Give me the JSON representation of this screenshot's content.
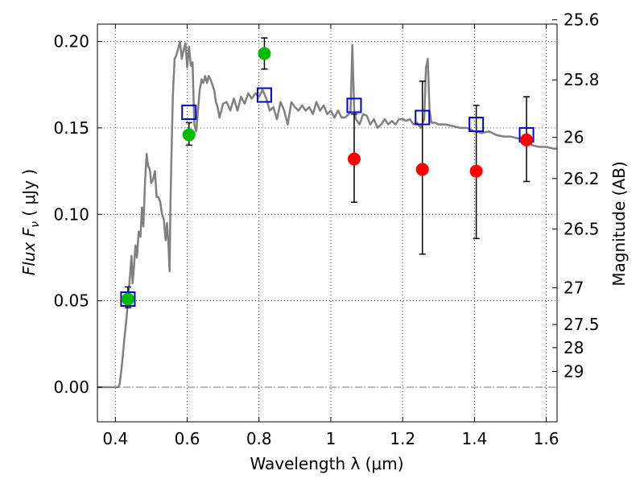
{
  "chart_data": {
    "type": "scatter",
    "title": "",
    "xlabel": "Wavelength  λ (μm)",
    "ylabel": "Flux  F",
    "ylabel_sub": "ν",
    "ylabel_unit": "  ( μJy )",
    "y2label": "Magnitude (AB)",
    "xlim": [
      0.35,
      1.63
    ],
    "ylim": [
      -0.02,
      0.21
    ],
    "grid": true,
    "x_ticks": [
      {
        "value": 0.4,
        "label": "0.4"
      },
      {
        "value": 0.6,
        "label": "0.6"
      },
      {
        "value": 0.8,
        "label": "0.8"
      },
      {
        "value": 1.0,
        "label": "1"
      },
      {
        "value": 1.2,
        "label": "1.2"
      },
      {
        "value": 1.4,
        "label": "1.4"
      },
      {
        "value": 1.6,
        "label": "1.6"
      }
    ],
    "y_ticks": [
      {
        "value": 0.0,
        "label": "0.00"
      },
      {
        "value": 0.05,
        "label": "0.05"
      },
      {
        "value": 0.1,
        "label": "0.10"
      },
      {
        "value": 0.15,
        "label": "0.15"
      },
      {
        "value": 0.2,
        "label": "0.20"
      }
    ],
    "y2_ticks": [
      {
        "flux": 0.2125,
        "label": "25.6"
      },
      {
        "flux": 0.1778,
        "label": "25.8"
      },
      {
        "flux": 0.1445,
        "label": "26"
      },
      {
        "flux": 0.1207,
        "label": "26.2"
      },
      {
        "flux": 0.0915,
        "label": "26.5"
      },
      {
        "flux": 0.0575,
        "label": "27"
      },
      {
        "flux": 0.0363,
        "label": "27.5"
      },
      {
        "flux": 0.0229,
        "label": "28"
      },
      {
        "flux": 0.0091,
        "label": "29"
      }
    ],
    "reference_line": {
      "y": 0.0,
      "style": "dash-dot",
      "color": "#7a7a7a"
    },
    "series": [
      {
        "kind": "line",
        "color": "#808080",
        "points": [
          [
            0.35,
            0.0
          ],
          [
            0.408,
            0.0
          ],
          [
            0.412,
            0.002
          ],
          [
            0.418,
            0.012
          ],
          [
            0.425,
            0.028
          ],
          [
            0.432,
            0.042
          ],
          [
            0.437,
            0.055
          ],
          [
            0.441,
            0.065
          ],
          [
            0.445,
            0.076
          ],
          [
            0.448,
            0.06
          ],
          [
            0.452,
            0.07
          ],
          [
            0.456,
            0.082
          ],
          [
            0.46,
            0.075
          ],
          [
            0.465,
            0.09
          ],
          [
            0.47,
            0.087
          ],
          [
            0.474,
            0.104
          ],
          [
            0.478,
            0.093
          ],
          [
            0.483,
            0.12
          ],
          [
            0.487,
            0.135
          ],
          [
            0.491,
            0.128
          ],
          [
            0.496,
            0.126
          ],
          [
            0.5,
            0.118
          ],
          [
            0.505,
            0.12
          ],
          [
            0.51,
            0.125
          ],
          [
            0.515,
            0.11
          ],
          [
            0.52,
            0.11
          ],
          [
            0.525,
            0.107
          ],
          [
            0.53,
            0.1
          ],
          [
            0.535,
            0.097
          ],
          [
            0.54,
            0.085
          ],
          [
            0.544,
            0.095
          ],
          [
            0.548,
            0.082
          ],
          [
            0.551,
            0.067
          ],
          [
            0.553,
            0.102
          ],
          [
            0.556,
            0.132
          ],
          [
            0.56,
            0.168
          ],
          [
            0.565,
            0.19
          ],
          [
            0.57,
            0.192
          ],
          [
            0.575,
            0.196
          ],
          [
            0.58,
            0.2
          ],
          [
            0.585,
            0.19
          ],
          [
            0.59,
            0.195
          ],
          [
            0.595,
            0.199
          ],
          [
            0.6,
            0.185
          ],
          [
            0.605,
            0.197
          ],
          [
            0.61,
            0.186
          ],
          [
            0.615,
            0.188
          ],
          [
            0.62,
            0.152
          ],
          [
            0.625,
            0.148
          ],
          [
            0.63,
            0.16
          ],
          [
            0.635,
            0.172
          ],
          [
            0.64,
            0.178
          ],
          [
            0.645,
            0.176
          ],
          [
            0.65,
            0.18
          ],
          [
            0.655,
            0.176
          ],
          [
            0.66,
            0.18
          ],
          [
            0.665,
            0.178
          ],
          [
            0.67,
            0.175
          ],
          [
            0.675,
            0.172
          ],
          [
            0.68,
            0.165
          ],
          [
            0.685,
            0.162
          ],
          [
            0.69,
            0.156
          ],
          [
            0.695,
            0.16
          ],
          [
            0.7,
            0.164
          ],
          [
            0.71,
            0.165
          ],
          [
            0.72,
            0.16
          ],
          [
            0.73,
            0.167
          ],
          [
            0.74,
            0.16
          ],
          [
            0.75,
            0.168
          ],
          [
            0.76,
            0.164
          ],
          [
            0.77,
            0.17
          ],
          [
            0.78,
            0.167
          ],
          [
            0.79,
            0.17
          ],
          [
            0.8,
            0.168
          ],
          [
            0.81,
            0.172
          ],
          [
            0.82,
            0.167
          ],
          [
            0.83,
            0.16
          ],
          [
            0.84,
            0.162
          ],
          [
            0.85,
            0.155
          ],
          [
            0.86,
            0.165
          ],
          [
            0.87,
            0.16
          ],
          [
            0.88,
            0.152
          ],
          [
            0.89,
            0.165
          ],
          [
            0.9,
            0.162
          ],
          [
            0.91,
            0.16
          ],
          [
            0.92,
            0.163
          ],
          [
            0.93,
            0.16
          ],
          [
            0.94,
            0.162
          ],
          [
            0.95,
            0.158
          ],
          [
            0.96,
            0.165
          ],
          [
            0.97,
            0.16
          ],
          [
            0.98,
            0.163
          ],
          [
            0.99,
            0.158
          ],
          [
            1.0,
            0.16
          ],
          [
            1.01,
            0.156
          ],
          [
            1.02,
            0.16
          ],
          [
            1.03,
            0.156
          ],
          [
            1.04,
            0.156
          ],
          [
            1.05,
            0.158
          ],
          [
            1.055,
            0.16
          ],
          [
            1.06,
            0.198
          ],
          [
            1.065,
            0.16
          ],
          [
            1.07,
            0.155
          ],
          [
            1.08,
            0.152
          ],
          [
            1.09,
            0.158
          ],
          [
            1.1,
            0.157
          ],
          [
            1.11,
            0.152
          ],
          [
            1.12,
            0.155
          ],
          [
            1.13,
            0.15
          ],
          [
            1.14,
            0.152
          ],
          [
            1.15,
            0.155
          ],
          [
            1.16,
            0.152
          ],
          [
            1.17,
            0.154
          ],
          [
            1.18,
            0.152
          ],
          [
            1.19,
            0.155
          ],
          [
            1.2,
            0.155
          ],
          [
            1.21,
            0.154
          ],
          [
            1.22,
            0.155
          ],
          [
            1.23,
            0.152
          ],
          [
            1.24,
            0.153
          ],
          [
            1.25,
            0.15
          ],
          [
            1.26,
            0.155
          ],
          [
            1.265,
            0.185
          ],
          [
            1.27,
            0.19
          ],
          [
            1.275,
            0.16
          ],
          [
            1.28,
            0.153
          ],
          [
            1.29,
            0.153
          ],
          [
            1.3,
            0.152
          ],
          [
            1.32,
            0.152
          ],
          [
            1.34,
            0.151
          ],
          [
            1.36,
            0.15
          ],
          [
            1.38,
            0.15
          ],
          [
            1.4,
            0.148
          ],
          [
            1.42,
            0.147
          ],
          [
            1.44,
            0.148
          ],
          [
            1.46,
            0.146
          ],
          [
            1.48,
            0.145
          ],
          [
            1.5,
            0.145
          ],
          [
            1.52,
            0.144
          ],
          [
            1.54,
            0.143
          ],
          [
            1.56,
            0.14
          ],
          [
            1.58,
            0.139
          ],
          [
            1.6,
            0.139
          ],
          [
            1.62,
            0.138
          ],
          [
            1.63,
            0.138
          ]
        ]
      },
      {
        "kind": "square-open",
        "color": "#0000cc",
        "points": [
          [
            0.435,
            0.051
          ],
          [
            0.605,
            0.159
          ],
          [
            0.815,
            0.169
          ],
          [
            1.065,
            0.163
          ],
          [
            1.255,
            0.156
          ],
          [
            1.405,
            0.152
          ],
          [
            1.545,
            0.146
          ]
        ]
      },
      {
        "kind": "circle-filled",
        "color": "#00bb00",
        "points": [
          {
            "x": 0.435,
            "y": 0.051,
            "lo": 0.046,
            "hi": 0.058
          },
          {
            "x": 0.605,
            "y": 0.146,
            "lo": 0.14,
            "hi": 0.153
          },
          {
            "x": 0.815,
            "y": 0.193,
            "lo": 0.184,
            "hi": 0.202
          }
        ]
      },
      {
        "kind": "circle-filled",
        "color": "#ff0000",
        "points": [
          {
            "x": 1.065,
            "y": 0.132,
            "lo": 0.107,
            "hi": 0.158
          },
          {
            "x": 1.255,
            "y": 0.126,
            "lo": 0.077,
            "hi": 0.177
          },
          {
            "x": 1.405,
            "y": 0.125,
            "lo": 0.086,
            "hi": 0.163
          },
          {
            "x": 1.545,
            "y": 0.143,
            "lo": 0.119,
            "hi": 0.168
          }
        ]
      }
    ]
  }
}
